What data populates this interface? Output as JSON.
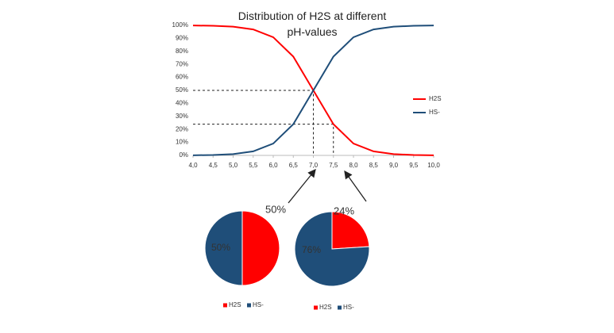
{
  "chart_data": [
    {
      "type": "line",
      "title": "Distribution of H2S at different pH-values",
      "x": [
        4.0,
        4.5,
        5.0,
        5.5,
        6.0,
        6.5,
        7.0,
        7.5,
        8.0,
        8.5,
        9.0,
        9.5,
        10.0
      ],
      "series": [
        {
          "name": "H2S",
          "color": "#ff0000",
          "values": [
            99.9,
            99.7,
            99.0,
            96.9,
            90.9,
            76.0,
            50.0,
            24.0,
            9.1,
            3.1,
            1.0,
            0.3,
            0.1
          ]
        },
        {
          "name": "HS-",
          "color": "#1f4e79",
          "values": [
            0.1,
            0.3,
            1.0,
            3.1,
            9.1,
            24.0,
            50.0,
            76.0,
            90.9,
            96.9,
            99.0,
            99.7,
            99.9
          ]
        }
      ],
      "xlim": [
        4.0,
        10.0
      ],
      "xticks": [
        {
          "value": 4.0,
          "label": "4,0"
        },
        {
          "value": 4.5,
          "label": "4,5"
        },
        {
          "value": 5.0,
          "label": "5,0"
        },
        {
          "value": 5.5,
          "label": "5,5"
        },
        {
          "value": 6.0,
          "label": "6,0"
        },
        {
          "value": 6.5,
          "label": "6,5"
        },
        {
          "value": 7.0,
          "label": "7,0"
        },
        {
          "value": 7.5,
          "label": "7,5"
        },
        {
          "value": 8.0,
          "label": "8,0"
        },
        {
          "value": 8.5,
          "label": "8,5"
        },
        {
          "value": 9.0,
          "label": "9,0"
        },
        {
          "value": 9.5,
          "label": "9,5"
        },
        {
          "value": 10.0,
          "label": "10,0"
        }
      ],
      "ylim": [
        0,
        100
      ],
      "yticks": [
        {
          "value": 0,
          "label": "0%"
        },
        {
          "value": 10,
          "label": "10%"
        },
        {
          "value": 20,
          "label": "20%"
        },
        {
          "value": 30,
          "label": "30%"
        },
        {
          "value": 40,
          "label": "40%"
        },
        {
          "value": 50,
          "label": "50%"
        },
        {
          "value": 60,
          "label": "60%"
        },
        {
          "value": 70,
          "label": "70%"
        },
        {
          "value": 80,
          "label": "80%"
        },
        {
          "value": 90,
          "label": "90%"
        },
        {
          "value": 100,
          "label": "100%"
        }
      ],
      "reference_points": [
        {
          "x": 7.0,
          "y": 50
        },
        {
          "x": 7.5,
          "y": 24
        }
      ],
      "legend": "right"
    },
    {
      "type": "pie",
      "categories": [
        "H2S",
        "HS-"
      ],
      "colors": [
        "#ff0000",
        "#1f4e79"
      ],
      "values": [
        50,
        50
      ],
      "value_labels": [
        "50%",
        "50%"
      ]
    },
    {
      "type": "pie",
      "categories": [
        "H2S",
        "HS-"
      ],
      "colors": [
        "#ff0000",
        "#1f4e79"
      ],
      "values": [
        24,
        76
      ],
      "value_labels": [
        "24%",
        "76%"
      ]
    }
  ]
}
